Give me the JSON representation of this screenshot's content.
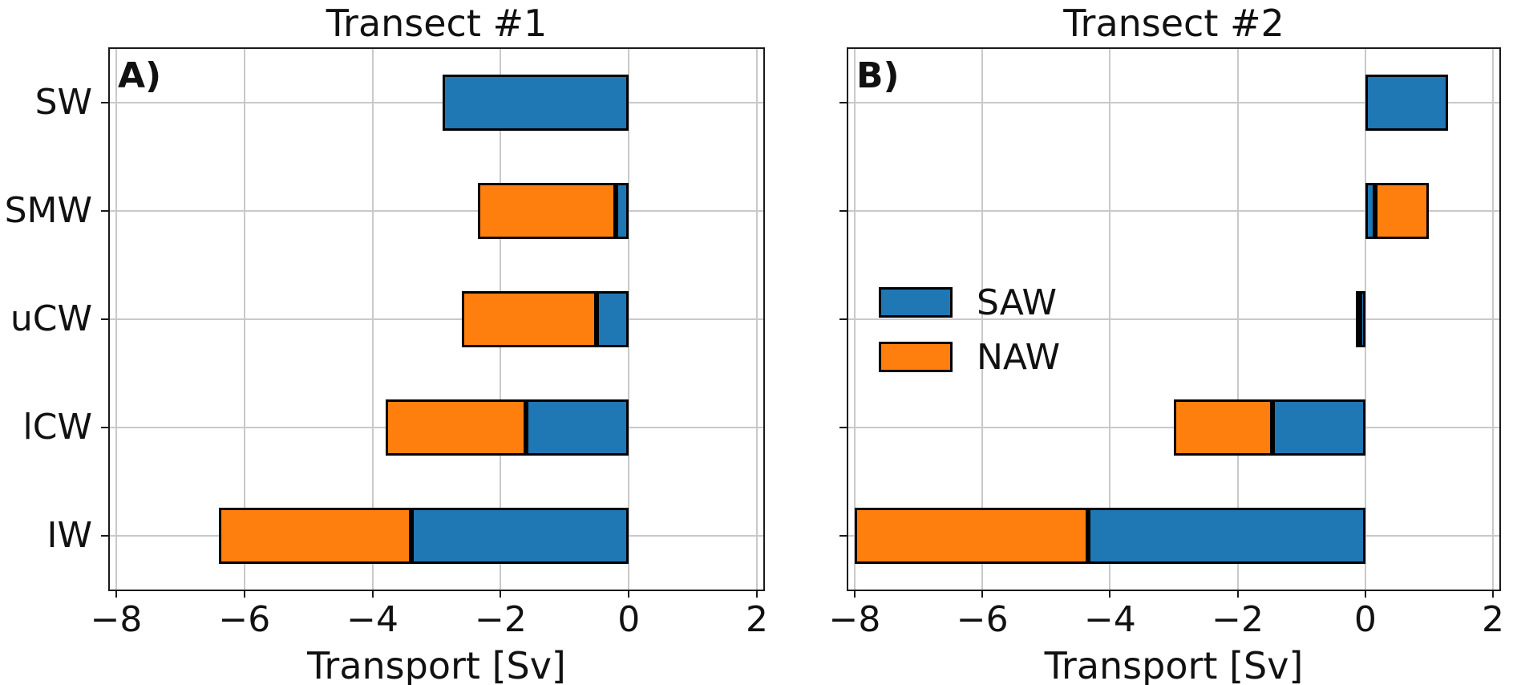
{
  "colors": {
    "saw_blue": "#1f77b4",
    "naw_orange": "#ff7f0e",
    "grid": "#c9c9c9",
    "bar_edge": "#000000",
    "background": "#ffffff"
  },
  "chart_data": [
    {
      "type": "bar",
      "orientation": "horizontal",
      "panel": "A",
      "corner_label": "A)",
      "title": "Transect #1",
      "xlabel": "Transport [Sv]",
      "categories": [
        "SW",
        "SMW",
        "uCW",
        "lCW",
        "IW"
      ],
      "series": [
        {
          "name": "SAW",
          "color": "#1f77b4",
          "values": [
            -2.9,
            -0.2,
            -0.5,
            -1.6,
            -3.4
          ]
        },
        {
          "name": "NAW",
          "color": "#ff7f0e",
          "values": [
            0,
            -2.15,
            -2.1,
            -2.2,
            -3.0
          ]
        }
      ],
      "hatched_categories": [
        "SW"
      ],
      "xlim": [
        -8.1,
        2.1
      ],
      "xticks": [
        -8,
        -6,
        -4,
        -2,
        0,
        2
      ],
      "xtick_labels": [
        "−8",
        "−6",
        "−4",
        "−2",
        "0",
        "2"
      ],
      "grid": true,
      "show_y_labels": true
    },
    {
      "type": "bar",
      "orientation": "horizontal",
      "panel": "B",
      "corner_label": "B)",
      "title": "Transect #2",
      "xlabel": "Transport [Sv]",
      "categories": [
        "SW",
        "SMW",
        "uCW",
        "lCW",
        "IW"
      ],
      "series": [
        {
          "name": "SAW",
          "color": "#1f77b4",
          "values": [
            1.3,
            0.15,
            -0.08,
            -1.45,
            -4.35
          ]
        },
        {
          "name": "NAW",
          "color": "#ff7f0e",
          "values": [
            0,
            0.85,
            -0.07,
            -1.55,
            -3.65
          ]
        }
      ],
      "hatched_categories": [
        "SW"
      ],
      "xlim": [
        -8.1,
        2.1
      ],
      "xticks": [
        -8,
        -6,
        -4,
        -2,
        0,
        2
      ],
      "xtick_labels": [
        "−8",
        "−6",
        "−4",
        "−2",
        "0",
        "2"
      ],
      "grid": true,
      "show_y_labels": false,
      "legend": {
        "position": "center-left",
        "frame": false,
        "entries": [
          {
            "label": "SAW",
            "color": "#1f77b4"
          },
          {
            "label": "NAW",
            "color": "#ff7f0e"
          }
        ]
      }
    }
  ]
}
